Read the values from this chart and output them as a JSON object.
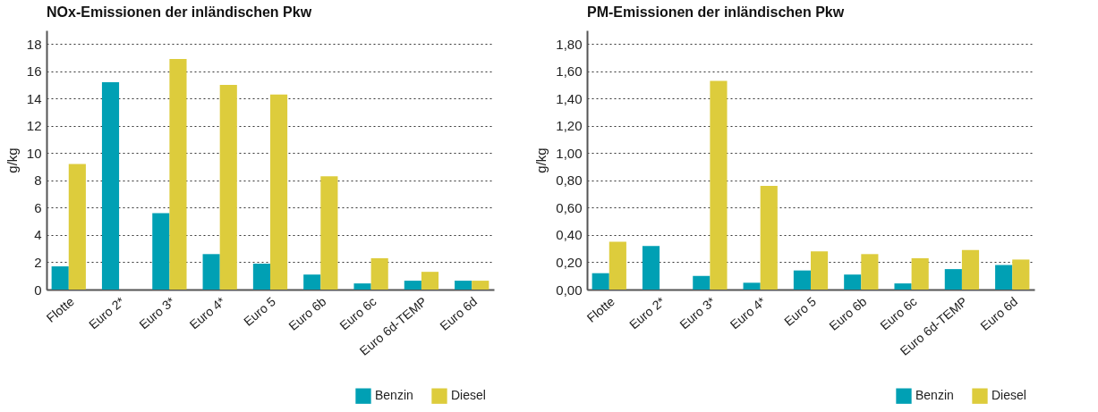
{
  "chart_data": [
    {
      "type": "bar",
      "title": "NOx-Emissionen der inländischen Pkw",
      "ylabel": "g/kg",
      "categories": [
        "Flotte",
        "Euro 2*",
        "Euro 3*",
        "Euro 4*",
        "Euro 5",
        "Euro 6b",
        "Euro 6c",
        "Euro 6d-TEMP",
        "Euro 6d"
      ],
      "series": [
        {
          "name": "Benzin",
          "color": "#00a0b4",
          "values": [
            1.7,
            15.2,
            5.6,
            2.6,
            1.9,
            1.1,
            0.45,
            0.65,
            0.65
          ]
        },
        {
          "name": "Diesel",
          "color": "#ddcc3c",
          "values": [
            9.2,
            null,
            16.9,
            15.0,
            14.3,
            8.3,
            2.3,
            1.3,
            0.65
          ]
        }
      ],
      "ylim": [
        0,
        19
      ],
      "yticks": [
        0,
        2,
        4,
        6,
        8,
        10,
        12,
        14,
        16,
        18
      ],
      "grid": "y",
      "legend": "bottom right"
    },
    {
      "type": "bar",
      "title": "PM-Emissionen der inländischen Pkw",
      "ylabel": "g/kg",
      "categories": [
        "Flotte",
        "Euro 2*",
        "Euro 3*",
        "Euro 4*",
        "Euro 5",
        "Euro 6b",
        "Euro 6c",
        "Euro 6d-TEMP",
        "Euro 6d"
      ],
      "series": [
        {
          "name": "Benzin",
          "color": "#00a0b4",
          "values": [
            0.12,
            0.32,
            0.1,
            0.05,
            0.14,
            0.11,
            0.045,
            0.15,
            0.18
          ]
        },
        {
          "name": "Diesel",
          "color": "#ddcc3c",
          "values": [
            0.35,
            null,
            1.53,
            0.76,
            0.28,
            0.26,
            0.23,
            0.29,
            0.22
          ]
        }
      ],
      "ylim": [
        0,
        1.9
      ],
      "yticks": [
        {
          "value": 0,
          "label": "0,00"
        },
        {
          "value": 0.2,
          "label": "0,20"
        },
        {
          "value": 0.4,
          "label": "0,40"
        },
        {
          "value": 0.6,
          "label": "0,60"
        },
        {
          "value": 0.8,
          "label": "0,80"
        },
        {
          "value": 1,
          "label": "1,00"
        },
        {
          "value": 1.2,
          "label": "1,20"
        },
        {
          "value": 1.4,
          "label": "1,40"
        },
        {
          "value": 1.6,
          "label": "1,60"
        },
        {
          "value": 1.8,
          "label": "1,80"
        }
      ],
      "grid": "y",
      "legend": "bottom right"
    }
  ]
}
